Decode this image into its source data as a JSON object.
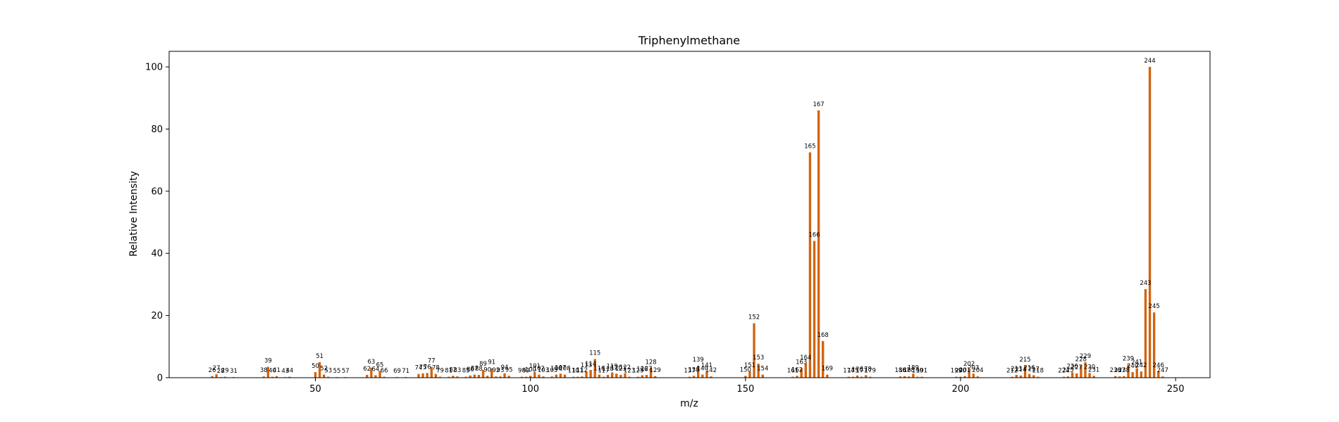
{
  "chart_data": {
    "type": "bar",
    "title": "Triphenylmethane",
    "xlabel": "m/z",
    "ylabel": "Relative Intensity",
    "xlim": [
      16,
      258
    ],
    "ylim": [
      0,
      105
    ],
    "xticks": [
      50,
      100,
      150,
      200,
      250
    ],
    "yticks": [
      0,
      20,
      40,
      60,
      80,
      100
    ],
    "grid": false,
    "bar_color": "#d2640f",
    "peaks": [
      {
        "mz": 26,
        "intensity": 0.5
      },
      {
        "mz": 27,
        "intensity": 1.1
      },
      {
        "mz": 28,
        "intensity": 0.2
      },
      {
        "mz": 29,
        "intensity": 0.3
      },
      {
        "mz": 31,
        "intensity": 0.2
      },
      {
        "mz": 38,
        "intensity": 0.4
      },
      {
        "mz": 39,
        "intensity": 3.5
      },
      {
        "mz": 40,
        "intensity": 0.3
      },
      {
        "mz": 41,
        "intensity": 0.5
      },
      {
        "mz": 43,
        "intensity": 0.2
      },
      {
        "mz": 44,
        "intensity": 0.3
      },
      {
        "mz": 50,
        "intensity": 1.8
      },
      {
        "mz": 51,
        "intensity": 5.0
      },
      {
        "mz": 52,
        "intensity": 1.0
      },
      {
        "mz": 53,
        "intensity": 0.3
      },
      {
        "mz": 55,
        "intensity": 0.2
      },
      {
        "mz": 57,
        "intensity": 0.2
      },
      {
        "mz": 62,
        "intensity": 0.9
      },
      {
        "mz": 63,
        "intensity": 3.2
      },
      {
        "mz": 64,
        "intensity": 0.8
      },
      {
        "mz": 65,
        "intensity": 2.2
      },
      {
        "mz": 66,
        "intensity": 0.3
      },
      {
        "mz": 69,
        "intensity": 0.2
      },
      {
        "mz": 71,
        "intensity": 0.2
      },
      {
        "mz": 74,
        "intensity": 1.2
      },
      {
        "mz": 75,
        "intensity": 1.4
      },
      {
        "mz": 76,
        "intensity": 1.5
      },
      {
        "mz": 77,
        "intensity": 3.5
      },
      {
        "mz": 78,
        "intensity": 1.2
      },
      {
        "mz": 79,
        "intensity": 0.3
      },
      {
        "mz": 81,
        "intensity": 0.3
      },
      {
        "mz": 82,
        "intensity": 0.6
      },
      {
        "mz": 83,
        "intensity": 0.4
      },
      {
        "mz": 85,
        "intensity": 0.3
      },
      {
        "mz": 86,
        "intensity": 0.7
      },
      {
        "mz": 87,
        "intensity": 1.0
      },
      {
        "mz": 88,
        "intensity": 0.9
      },
      {
        "mz": 89,
        "intensity": 2.5
      },
      {
        "mz": 90,
        "intensity": 0.6
      },
      {
        "mz": 91,
        "intensity": 3.0
      },
      {
        "mz": 92,
        "intensity": 0.4
      },
      {
        "mz": 93,
        "intensity": 0.4
      },
      {
        "mz": 94,
        "intensity": 1.4
      },
      {
        "mz": 95,
        "intensity": 0.6
      },
      {
        "mz": 98,
        "intensity": 0.3
      },
      {
        "mz": 99,
        "intensity": 0.3
      },
      {
        "mz": 100,
        "intensity": 0.6
      },
      {
        "mz": 101,
        "intensity": 1.8
      },
      {
        "mz": 102,
        "intensity": 1.0
      },
      {
        "mz": 103,
        "intensity": 0.4
      },
      {
        "mz": 105,
        "intensity": 0.4
      },
      {
        "mz": 106,
        "intensity": 1.0
      },
      {
        "mz": 107,
        "intensity": 1.3
      },
      {
        "mz": 108,
        "intensity": 1.0
      },
      {
        "mz": 110,
        "intensity": 0.3
      },
      {
        "mz": 111,
        "intensity": 0.3
      },
      {
        "mz": 112,
        "intensity": 0.4
      },
      {
        "mz": 113,
        "intensity": 2.0
      },
      {
        "mz": 114,
        "intensity": 2.5
      },
      {
        "mz": 115,
        "intensity": 6.0
      },
      {
        "mz": 116,
        "intensity": 1.0
      },
      {
        "mz": 117,
        "intensity": 0.3
      },
      {
        "mz": 118,
        "intensity": 0.9
      },
      {
        "mz": 119,
        "intensity": 1.7
      },
      {
        "mz": 120,
        "intensity": 1.3
      },
      {
        "mz": 121,
        "intensity": 0.9
      },
      {
        "mz": 122,
        "intensity": 1.4
      },
      {
        "mz": 123,
        "intensity": 0.3
      },
      {
        "mz": 125,
        "intensity": 0.3
      },
      {
        "mz": 126,
        "intensity": 0.8
      },
      {
        "mz": 127,
        "intensity": 0.9
      },
      {
        "mz": 128,
        "intensity": 3.0
      },
      {
        "mz": 129,
        "intensity": 0.5
      },
      {
        "mz": 137,
        "intensity": 0.3
      },
      {
        "mz": 138,
        "intensity": 0.6
      },
      {
        "mz": 139,
        "intensity": 3.8
      },
      {
        "mz": 140,
        "intensity": 1.0
      },
      {
        "mz": 141,
        "intensity": 2.0
      },
      {
        "mz": 142,
        "intensity": 0.4
      },
      {
        "mz": 150,
        "intensity": 0.6
      },
      {
        "mz": 151,
        "intensity": 2.0
      },
      {
        "mz": 152,
        "intensity": 17.5
      },
      {
        "mz": 153,
        "intensity": 4.5
      },
      {
        "mz": 154,
        "intensity": 1.0
      },
      {
        "mz": 161,
        "intensity": 0.3
      },
      {
        "mz": 162,
        "intensity": 0.6
      },
      {
        "mz": 163,
        "intensity": 3.0
      },
      {
        "mz": 164,
        "intensity": 4.5
      },
      {
        "mz": 165,
        "intensity": 72.5
      },
      {
        "mz": 166,
        "intensity": 44.0
      },
      {
        "mz": 167,
        "intensity": 86.0
      },
      {
        "mz": 168,
        "intensity": 11.8
      },
      {
        "mz": 169,
        "intensity": 1.0
      },
      {
        "mz": 174,
        "intensity": 0.3
      },
      {
        "mz": 175,
        "intensity": 0.3
      },
      {
        "mz": 176,
        "intensity": 0.7
      },
      {
        "mz": 177,
        "intensity": 0.3
      },
      {
        "mz": 178,
        "intensity": 0.8
      },
      {
        "mz": 179,
        "intensity": 0.3
      },
      {
        "mz": 186,
        "intensity": 0.4
      },
      {
        "mz": 187,
        "intensity": 0.5
      },
      {
        "mz": 188,
        "intensity": 0.4
      },
      {
        "mz": 189,
        "intensity": 1.3
      },
      {
        "mz": 190,
        "intensity": 0.3
      },
      {
        "mz": 191,
        "intensity": 0.3
      },
      {
        "mz": 199,
        "intensity": 0.3
      },
      {
        "mz": 200,
        "intensity": 0.3
      },
      {
        "mz": 201,
        "intensity": 0.5
      },
      {
        "mz": 202,
        "intensity": 2.5
      },
      {
        "mz": 203,
        "intensity": 1.3
      },
      {
        "mz": 204,
        "intensity": 0.4
      },
      {
        "mz": 212,
        "intensity": 0.3
      },
      {
        "mz": 213,
        "intensity": 0.9
      },
      {
        "mz": 214,
        "intensity": 0.7
      },
      {
        "mz": 215,
        "intensity": 3.8
      },
      {
        "mz": 216,
        "intensity": 1.2
      },
      {
        "mz": 217,
        "intensity": 0.8
      },
      {
        "mz": 218,
        "intensity": 0.3
      },
      {
        "mz": 224,
        "intensity": 0.3
      },
      {
        "mz": 225,
        "intensity": 0.4
      },
      {
        "mz": 226,
        "intensity": 1.7
      },
      {
        "mz": 227,
        "intensity": 1.4
      },
      {
        "mz": 228,
        "intensity": 4.0
      },
      {
        "mz": 229,
        "intensity": 5.0
      },
      {
        "mz": 230,
        "intensity": 1.5
      },
      {
        "mz": 231,
        "intensity": 0.6
      },
      {
        "mz": 236,
        "intensity": 0.5
      },
      {
        "mz": 237,
        "intensity": 0.4
      },
      {
        "mz": 238,
        "intensity": 0.5
      },
      {
        "mz": 239,
        "intensity": 4.2
      },
      {
        "mz": 240,
        "intensity": 1.8
      },
      {
        "mz": 241,
        "intensity": 3.0
      },
      {
        "mz": 242,
        "intensity": 2.0
      },
      {
        "mz": 243,
        "intensity": 28.5
      },
      {
        "mz": 244,
        "intensity": 100.0
      },
      {
        "mz": 245,
        "intensity": 21.0
      },
      {
        "mz": 246,
        "intensity": 2.0
      },
      {
        "mz": 247,
        "intensity": 0.4
      }
    ]
  }
}
